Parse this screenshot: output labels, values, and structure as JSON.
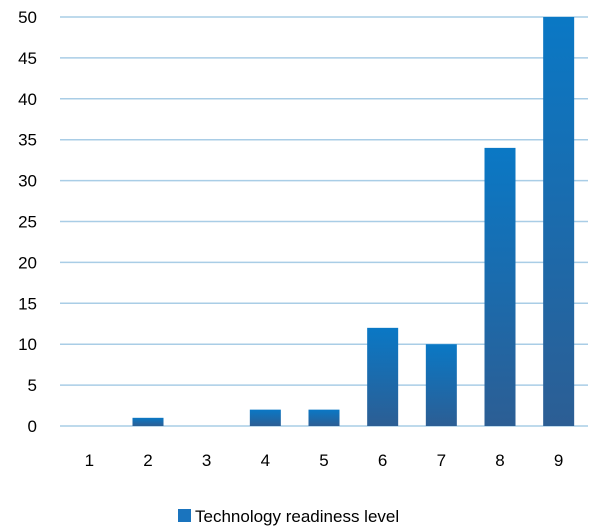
{
  "chart_data": {
    "type": "bar",
    "categories": [
      "1",
      "2",
      "3",
      "4",
      "5",
      "6",
      "7",
      "8",
      "9"
    ],
    "series": [
      {
        "name": "Technology readiness level",
        "values": [
          0,
          1,
          0,
          2,
          2,
          12,
          10,
          34,
          50
        ]
      }
    ],
    "ylim": [
      0,
      50
    ],
    "yticks": [
      0,
      5,
      10,
      15,
      20,
      25,
      30,
      35,
      40,
      45,
      50
    ],
    "grid": true,
    "legend": "bottom",
    "colors": {
      "bar": "#1a74be",
      "bar_dark": "#2a5c92",
      "grid": "#a9cde6"
    }
  }
}
